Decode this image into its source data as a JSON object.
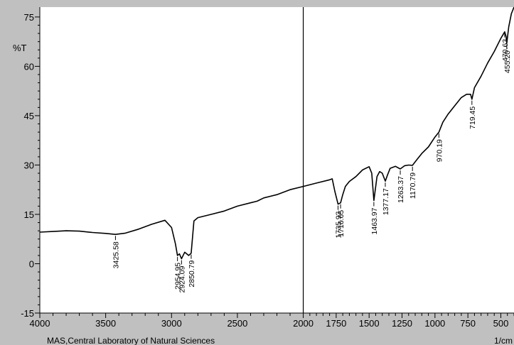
{
  "chart_data": {
    "type": "line",
    "title": "",
    "ylabel": "%T",
    "xunit": "1/cm",
    "footer": "MAS,Central Laboratory of Natural Sciences",
    "xlim": [
      4000,
      400
    ],
    "ylim": [
      -15,
      78
    ],
    "x_ticks": [
      4000,
      3500,
      3000,
      2500,
      2000,
      1750,
      1500,
      1250,
      1000,
      750,
      500
    ],
    "x_tick_labels": [
      "4000",
      "3500",
      "3000",
      "2500",
      "2000",
      "1750",
      "1500",
      "1250",
      "1000",
      "750",
      "500"
    ],
    "y_ticks": [
      75,
      60,
      45,
      30,
      15,
      0,
      -15
    ],
    "y_tick_labels": [
      "75",
      "60",
      "45",
      "30",
      "15",
      "0",
      "-15"
    ],
    "marker_line_x": 2000,
    "series": [
      {
        "x": [
          4000,
          3900,
          3800,
          3700,
          3600,
          3500,
          3425.58,
          3350,
          3250,
          3150,
          3050,
          3000,
          2970,
          2954.95,
          2940,
          2924.09,
          2900,
          2870,
          2850.79,
          2830,
          2800,
          2700,
          2600,
          2500,
          2400,
          2350,
          2300,
          2200,
          2100,
          2000,
          1900,
          1800,
          1780,
          1760,
          1735.93,
          1716.65,
          1700,
          1680,
          1650,
          1600,
          1550,
          1500,
          1480,
          1463.97,
          1440,
          1420,
          1400,
          1377.17,
          1360,
          1340,
          1300,
          1263.37,
          1230,
          1200,
          1170.79,
          1140,
          1100,
          1050,
          1000,
          970.19,
          940,
          900,
          850,
          800,
          760,
          730,
          719.45,
          700,
          650,
          600,
          550,
          500,
          470.63,
          460,
          455.2,
          440,
          420,
          400
        ],
        "y": [
          9.6,
          9.8,
          10,
          9.9,
          9.5,
          9.2,
          8.9,
          9.3,
          10.5,
          12,
          13.2,
          11,
          6,
          2.5,
          3,
          1.5,
          3.5,
          2.5,
          3.2,
          13,
          14,
          15,
          16,
          17.5,
          18.5,
          19,
          20,
          21,
          22.5,
          23.5,
          24.5,
          25.5,
          25.8,
          22,
          18.1,
          18.5,
          21,
          23.5,
          25,
          26.5,
          28.5,
          29.5,
          27.5,
          19.2,
          26.5,
          28,
          27.5,
          25.1,
          27,
          29,
          29.6,
          28.8,
          29.8,
          30,
          29.9,
          31.5,
          33.5,
          35.5,
          38.5,
          40,
          43,
          45.5,
          48,
          50.5,
          51.5,
          51.5,
          50,
          53.5,
          57,
          61,
          64.5,
          68.5,
          70.5,
          69,
          67,
          72,
          76,
          78
        ]
      }
    ],
    "peak_labels": [
      {
        "x": 3425.58,
        "y": 8.9,
        "text": "3425.58"
      },
      {
        "x": 2954.95,
        "y": 2.5,
        "text": "2954.95"
      },
      {
        "x": 2924.09,
        "y": 1.5,
        "text": "2924.09"
      },
      {
        "x": 2850.79,
        "y": 3.2,
        "text": "2850.79"
      },
      {
        "x": 1735.93,
        "y": 18.1,
        "text": "1735.93"
      },
      {
        "x": 1716.65,
        "y": 18.5,
        "text": "1716.65"
      },
      {
        "x": 1463.97,
        "y": 19.2,
        "text": "1463.97"
      },
      {
        "x": 1377.17,
        "y": 25.1,
        "text": "1377.17"
      },
      {
        "x": 1263.37,
        "y": 28.8,
        "text": "1263.37"
      },
      {
        "x": 1170.79,
        "y": 29.9,
        "text": "1170.79"
      },
      {
        "x": 970.19,
        "y": 40,
        "text": "970.19"
      },
      {
        "x": 719.45,
        "y": 50,
        "text": "719.45"
      },
      {
        "x": 470.63,
        "y": 70.5,
        "text": "470.63"
      },
      {
        "x": 455.2,
        "y": 67,
        "text": "455.20"
      }
    ],
    "colors": {
      "background": "#c0c0c0",
      "plot_area": "#ffffff",
      "line": "#000000"
    }
  }
}
